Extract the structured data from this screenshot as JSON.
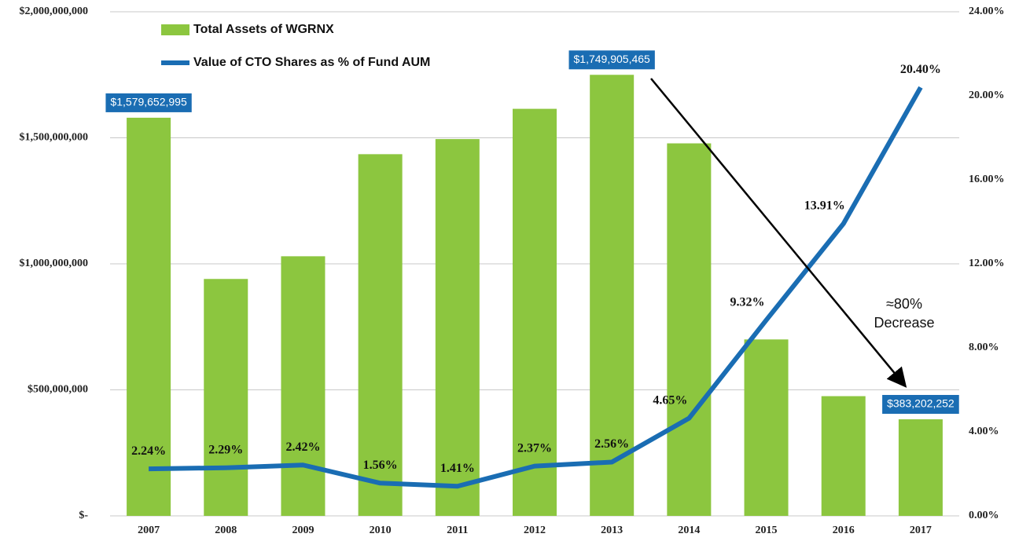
{
  "chart_data": {
    "type": "bar",
    "categories": [
      "2007",
      "2008",
      "2009",
      "2010",
      "2011",
      "2012",
      "2013",
      "2014",
      "2015",
      "2016",
      "2017"
    ],
    "series": [
      {
        "name": "Total Assets of WGRNX",
        "type": "bar",
        "color": "#8cc63f",
        "values": [
          1579652995,
          940000000,
          1030000000,
          1435000000,
          1495000000,
          1615000000,
          1749905465,
          1478000000,
          700000000,
          475000000,
          383202252
        ],
        "value_labels": [
          "$1,579,652,995",
          null,
          null,
          null,
          null,
          null,
          "$1,749,905,465",
          null,
          null,
          null,
          "$383,202,252"
        ]
      },
      {
        "name": "Value of CTO Shares as % of Fund AUM",
        "type": "line",
        "axis": "y2",
        "color": "#1a6db3",
        "values": [
          2.24,
          2.29,
          2.42,
          1.56,
          1.41,
          2.37,
          2.56,
          4.65,
          9.32,
          13.91,
          20.4
        ],
        "value_labels": [
          "2.24%",
          "2.29%",
          "2.42%",
          "1.56%",
          "1.41%",
          "2.37%",
          "2.56%",
          "4.65%",
          "9.32%",
          "13.91%",
          "20.40%"
        ]
      }
    ],
    "ylim": [
      0,
      2000000000
    ],
    "yticks": [
      {
        "value": 0,
        "label": "$-"
      },
      {
        "value": 500000000,
        "label": "$500,000,000"
      },
      {
        "value": 1000000000,
        "label": "$1,000,000,000"
      },
      {
        "value": 1500000000,
        "label": "$1,500,000,000"
      },
      {
        "value": 2000000000,
        "label": "$2,000,000,000"
      }
    ],
    "y2lim": [
      0,
      24
    ],
    "y2ticks": [
      {
        "value": 0,
        "label": "0.00%"
      },
      {
        "value": 4,
        "label": "4.00%"
      },
      {
        "value": 8,
        "label": "8.00%"
      },
      {
        "value": 12,
        "label": "12.00%"
      },
      {
        "value": 16,
        "label": "16.00%"
      },
      {
        "value": 20,
        "label": "20.00%"
      },
      {
        "value": 24,
        "label": "24.00%"
      }
    ],
    "grid": true,
    "legend": "top-left",
    "annotations": [
      "≈80%",
      "Decrease"
    ]
  }
}
